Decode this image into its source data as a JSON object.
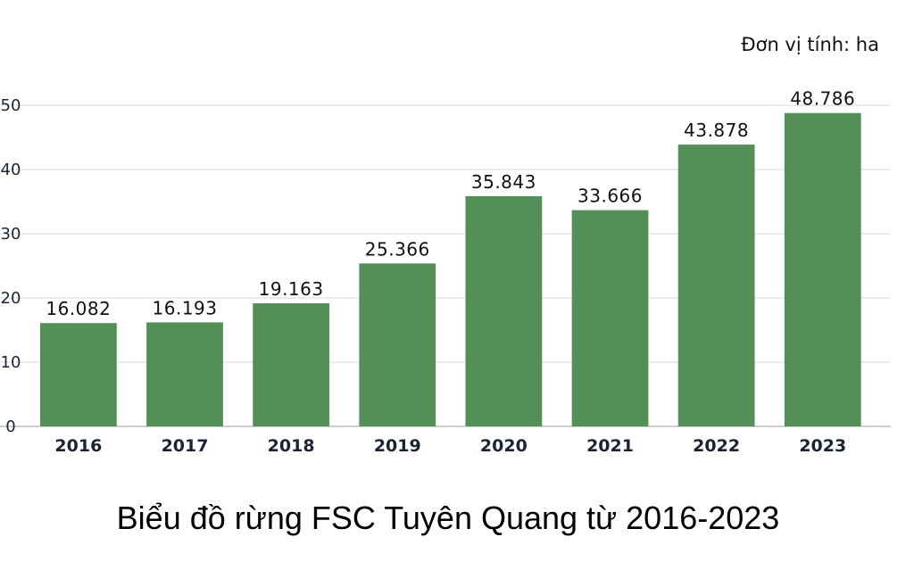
{
  "chart_data": {
    "type": "bar",
    "title": "Biểu đồ rừng FSC Tuyên Quang từ 2016-2023",
    "unit_label": "Đơn vị tính: ha",
    "categories": [
      "2016",
      "2017",
      "2018",
      "2019",
      "2020",
      "2021",
      "2022",
      "2023"
    ],
    "values": [
      16.082,
      16.193,
      19.163,
      25.366,
      35.843,
      33.666,
      43.878,
      48.786
    ],
    "value_labels": [
      "16.082",
      "16.193",
      "19.163",
      "25.366",
      "35.843",
      "33.666",
      "43.878",
      "48.786"
    ],
    "yticks": [
      "0",
      "10",
      "20",
      "30",
      "40",
      "50"
    ],
    "ylim": [
      0,
      50
    ],
    "grid": true,
    "bar_color": "#548f57"
  }
}
